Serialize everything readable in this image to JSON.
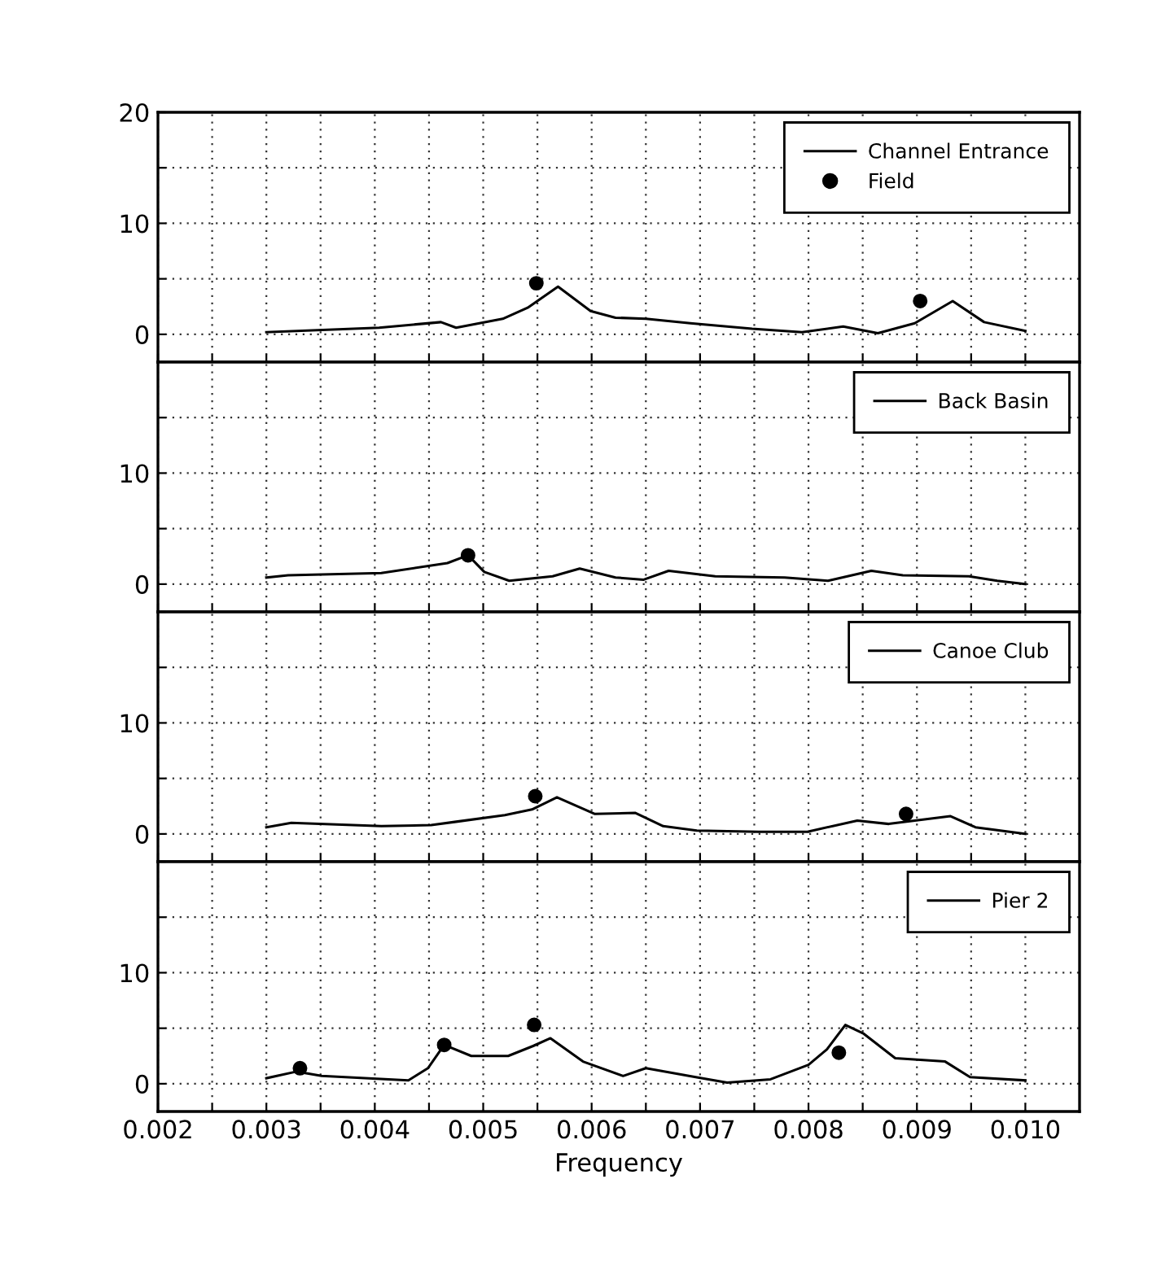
{
  "chart_data": [
    {
      "type": "line",
      "xlim": [
        0.002,
        0.0105
      ],
      "ylim": [
        -2.5,
        20
      ],
      "xticks": [
        {
          "value": 0.002,
          "label": null
        },
        {
          "value": 0.0025,
          "label": null
        },
        {
          "value": 0.003,
          "label": null
        },
        {
          "value": 0.0035,
          "label": null
        },
        {
          "value": 0.004,
          "label": null
        },
        {
          "value": 0.0045,
          "label": null
        },
        {
          "value": 0.005,
          "label": null
        },
        {
          "value": 0.0055,
          "label": null
        },
        {
          "value": 0.006,
          "label": null
        },
        {
          "value": 0.0065,
          "label": null
        },
        {
          "value": 0.007,
          "label": null
        },
        {
          "value": 0.0075,
          "label": null
        },
        {
          "value": 0.008,
          "label": null
        },
        {
          "value": 0.0085,
          "label": null
        },
        {
          "value": 0.009,
          "label": null
        },
        {
          "value": 0.0095,
          "label": null
        },
        {
          "value": 0.01,
          "label": null
        }
      ],
      "yticks": [
        0,
        {
          "value": 5,
          "label": null
        },
        10,
        {
          "value": 15,
          "label": null
        },
        20
      ],
      "grid": true,
      "legend": "top right",
      "tick_labels": "y",
      "series": [
        {
          "name": "Channel Entrance",
          "color": "#000000",
          "x": [
            0.003,
            0.00404,
            0.00461,
            0.00475,
            0.00518,
            0.00541,
            0.00569,
            0.00599,
            0.00622,
            0.0065,
            0.00691,
            0.00748,
            0.00794,
            0.00832,
            0.00864,
            0.00898,
            0.00933,
            0.00962,
            0.01
          ],
          "values": [
            0.2,
            0.6,
            1.1,
            0.6,
            1.4,
            2.4,
            4.3,
            2.1,
            1.5,
            1.4,
            1.0,
            0.5,
            0.2,
            0.7,
            0.1,
            1.0,
            3.0,
            1.1,
            0.3
          ]
        },
        {
          "name": "Field",
          "type": "scatter",
          "marker": "circle",
          "color": "#000000",
          "x": [
            0.00549,
            0.00903
          ],
          "values": [
            4.6,
            3.0
          ]
        }
      ]
    },
    {
      "type": "line",
      "xlim": [
        0.002,
        0.0105
      ],
      "ylim": [
        -2.5,
        20
      ],
      "xticks": [
        {
          "value": 0.002,
          "label": null
        },
        {
          "value": 0.0025,
          "label": null
        },
        {
          "value": 0.003,
          "label": null
        },
        {
          "value": 0.0035,
          "label": null
        },
        {
          "value": 0.004,
          "label": null
        },
        {
          "value": 0.0045,
          "label": null
        },
        {
          "value": 0.005,
          "label": null
        },
        {
          "value": 0.0055,
          "label": null
        },
        {
          "value": 0.006,
          "label": null
        },
        {
          "value": 0.0065,
          "label": null
        },
        {
          "value": 0.007,
          "label": null
        },
        {
          "value": 0.0075,
          "label": null
        },
        {
          "value": 0.008,
          "label": null
        },
        {
          "value": 0.0085,
          "label": null
        },
        {
          "value": 0.009,
          "label": null
        },
        {
          "value": 0.0095,
          "label": null
        },
        {
          "value": 0.01,
          "label": null
        }
      ],
      "yticks": [
        0,
        {
          "value": 5,
          "label": null
        },
        10,
        {
          "value": 15,
          "label": null
        },
        {
          "value": 20,
          "label": null
        }
      ],
      "grid": true,
      "legend": "top right",
      "tick_labels": "y",
      "series": [
        {
          "name": "Back Basin",
          "color": "#000000",
          "x": [
            0.003,
            0.0032,
            0.00406,
            0.00467,
            0.00486,
            0.00501,
            0.00524,
            0.00564,
            0.00589,
            0.00622,
            0.00648,
            0.00671,
            0.00714,
            0.00778,
            0.00818,
            0.00858,
            0.00887,
            0.00948,
            0.00974,
            0.01
          ],
          "values": [
            0.6,
            0.8,
            1.0,
            1.9,
            2.6,
            1.1,
            0.3,
            0.7,
            1.4,
            0.6,
            0.4,
            1.2,
            0.7,
            0.6,
            0.3,
            1.2,
            0.8,
            0.7,
            0.3,
            0.0
          ]
        },
        {
          "type": "scatter",
          "marker": "circle",
          "color": "#000000",
          "x": [
            0.00486
          ],
          "values": [
            2.6
          ]
        }
      ]
    },
    {
      "type": "line",
      "xlim": [
        0.002,
        0.0105
      ],
      "ylim": [
        -2.5,
        20
      ],
      "xticks": [
        {
          "value": 0.002,
          "label": null
        },
        {
          "value": 0.0025,
          "label": null
        },
        {
          "value": 0.003,
          "label": null
        },
        {
          "value": 0.0035,
          "label": null
        },
        {
          "value": 0.004,
          "label": null
        },
        {
          "value": 0.0045,
          "label": null
        },
        {
          "value": 0.005,
          "label": null
        },
        {
          "value": 0.0055,
          "label": null
        },
        {
          "value": 0.006,
          "label": null
        },
        {
          "value": 0.0065,
          "label": null
        },
        {
          "value": 0.007,
          "label": null
        },
        {
          "value": 0.0075,
          "label": null
        },
        {
          "value": 0.008,
          "label": null
        },
        {
          "value": 0.0085,
          "label": null
        },
        {
          "value": 0.009,
          "label": null
        },
        {
          "value": 0.0095,
          "label": null
        },
        {
          "value": 0.01,
          "label": null
        }
      ],
      "yticks": [
        0,
        {
          "value": 5,
          "label": null
        },
        10,
        {
          "value": 15,
          "label": null
        },
        {
          "value": 20,
          "label": null
        }
      ],
      "grid": true,
      "legend": "top right",
      "tick_labels": "y",
      "series": [
        {
          "name": "Canoe Club",
          "color": "#000000",
          "x": [
            0.003,
            0.00323,
            0.00406,
            0.00452,
            0.00475,
            0.0052,
            0.00545,
            0.00568,
            0.00603,
            0.0064,
            0.00666,
            0.00697,
            0.00754,
            0.00799,
            0.00845,
            0.00874,
            0.00931,
            0.00954,
            0.01
          ],
          "values": [
            0.6,
            1.0,
            0.7,
            0.8,
            1.1,
            1.7,
            2.2,
            3.3,
            1.8,
            1.9,
            0.7,
            0.3,
            0.2,
            0.2,
            1.2,
            0.9,
            1.6,
            0.6,
            0.0
          ]
        },
        {
          "type": "scatter",
          "marker": "circle",
          "color": "#000000",
          "x": [
            0.00548,
            0.0089
          ],
          "values": [
            3.4,
            1.8
          ]
        }
      ]
    },
    {
      "type": "line",
      "xlim": [
        0.002,
        0.0105
      ],
      "ylim": [
        -2.5,
        20
      ],
      "xticks": [
        0.002,
        {
          "value": 0.0025,
          "label": null
        },
        0.003,
        {
          "value": 0.0035,
          "label": null
        },
        0.004,
        {
          "value": 0.0045,
          "label": null
        },
        0.005,
        {
          "value": 0.0055,
          "label": null
        },
        0.006,
        {
          "value": 0.0065,
          "label": null
        },
        0.007,
        {
          "value": 0.0075,
          "label": null
        },
        0.008,
        {
          "value": 0.0085,
          "label": null
        },
        0.009,
        {
          "value": 0.0095,
          "label": null
        },
        {
          "value": 0.01,
          "label": "0.010"
        }
      ],
      "yticks": [
        0,
        {
          "value": 5,
          "label": null
        },
        10,
        {
          "value": 15,
          "label": null
        },
        {
          "value": 20,
          "label": null
        }
      ],
      "grid": true,
      "legend": "top right",
      "xlabel": "Frequency",
      "series": [
        {
          "name": "Pier 2",
          "color": "#000000",
          "x": [
            0.003,
            0.00328,
            0.00351,
            0.00431,
            0.00449,
            0.00464,
            0.00489,
            0.00523,
            0.00546,
            0.00562,
            0.00592,
            0.00629,
            0.0065,
            0.00696,
            0.00725,
            0.00765,
            0.008,
            0.00817,
            0.00834,
            0.00851,
            0.0088,
            0.00926,
            0.00949,
            0.01
          ],
          "values": [
            0.5,
            1.1,
            0.7,
            0.3,
            1.4,
            3.5,
            2.5,
            2.5,
            3.4,
            4.1,
            2.0,
            0.7,
            1.4,
            0.6,
            0.1,
            0.4,
            1.7,
            3.1,
            5.3,
            4.5,
            2.3,
            2.0,
            0.6,
            0.3
          ]
        },
        {
          "type": "scatter",
          "marker": "circle",
          "color": "#000000",
          "x": [
            0.00331,
            0.00464,
            0.00547,
            0.00828
          ],
          "values": [
            1.4,
            3.5,
            5.3,
            2.8
          ]
        }
      ]
    }
  ]
}
